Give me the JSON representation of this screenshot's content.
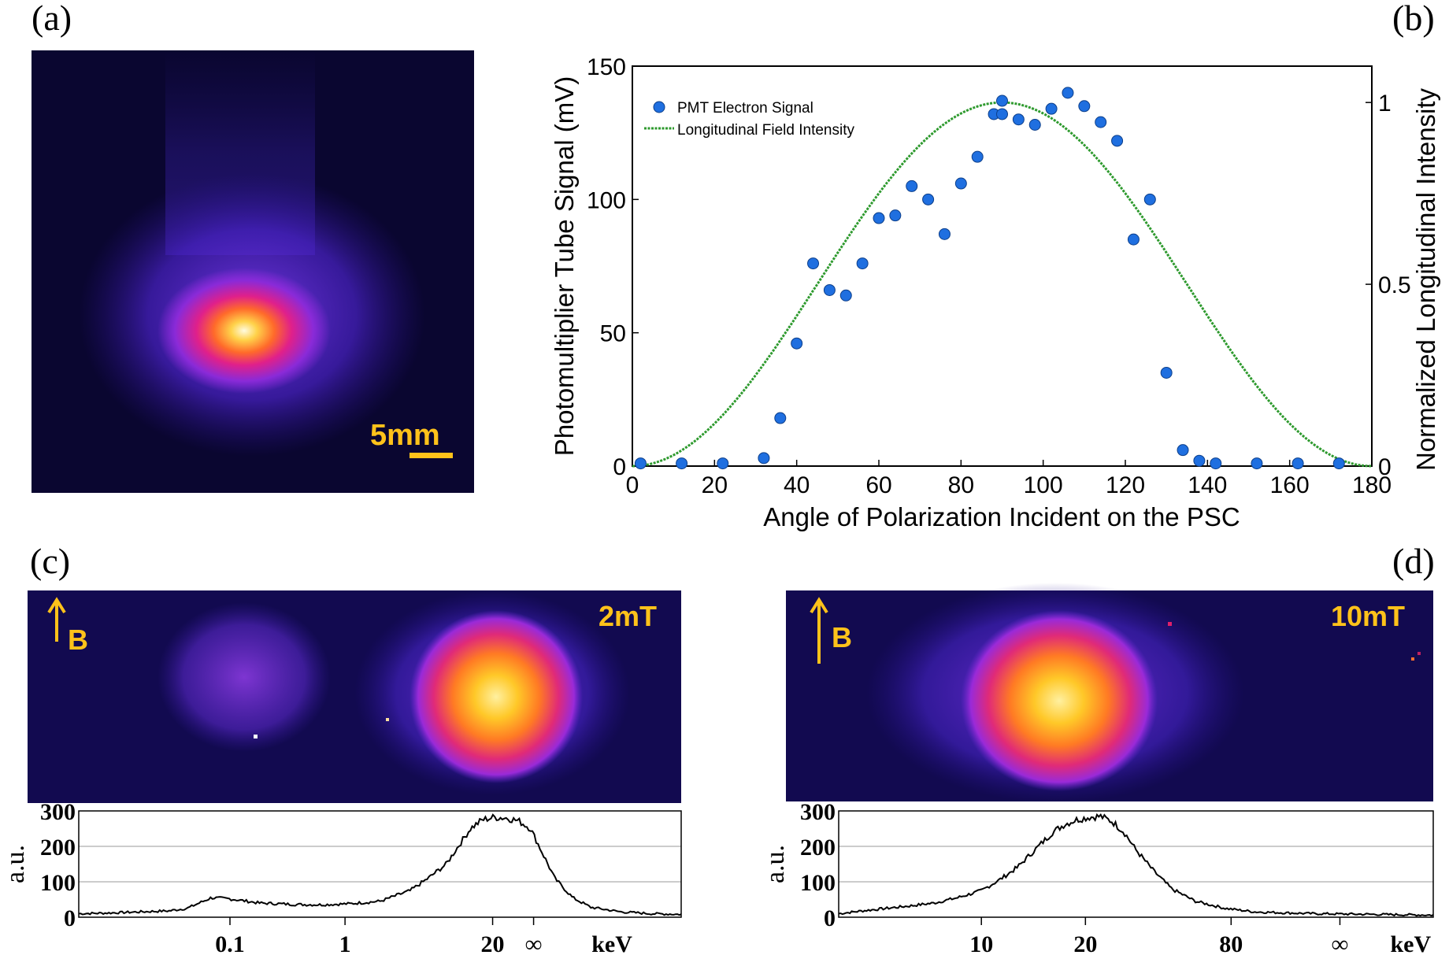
{
  "chart_data": [
    {
      "type": "image",
      "panel_label": "(a)",
      "scale_bar_label": "5mm",
      "colors": {
        "background": "#0a0630",
        "accent": "#ffc21a"
      }
    },
    {
      "type": "scatter",
      "panel_label": "(b)",
      "xlabel": "Angle of Polarization Incident on the PSC",
      "ylabel": "Photomultiplier Tube Signal (mV)",
      "y2label": "Normalized Longitudinal Intensity",
      "xlim": [
        0,
        180
      ],
      "ylim": [
        0,
        150
      ],
      "y2lim": [
        0,
        1.1
      ],
      "xticks": [
        "0",
        "20",
        "40",
        "60",
        "80",
        "100",
        "120",
        "140",
        "160",
        "180"
      ],
      "yticks": [
        "0",
        "50",
        "100",
        "150"
      ],
      "y2ticks": [
        "0",
        "0.5",
        "1"
      ],
      "legend_position": "top-left",
      "series": [
        {
          "name": "PMT Electron Signal",
          "kind": "scatter",
          "color": "#1f6fe0",
          "x": [
            2,
            12,
            22,
            32,
            36,
            40,
            44,
            48,
            52,
            56,
            60,
            64,
            68,
            72,
            76,
            80,
            84,
            88,
            90,
            90,
            94,
            98,
            102,
            106,
            110,
            114,
            118,
            122,
            126,
            130,
            134,
            138,
            142,
            152,
            162,
            172
          ],
          "y": [
            1,
            1,
            1,
            3,
            18,
            46,
            76,
            66,
            64,
            76,
            93,
            94,
            105,
            100,
            87,
            106,
            116,
            132,
            132,
            137,
            130,
            128,
            134,
            140,
            135,
            129,
            122,
            85,
            100,
            35,
            6,
            2,
            1,
            1,
            1,
            1
          ]
        },
        {
          "name": "Longitudinal Field Intensity",
          "kind": "line",
          "color": "#2e9a2e",
          "function": "sin^2(angle)",
          "x": [
            0,
            10,
            20,
            30,
            40,
            50,
            60,
            70,
            80,
            90,
            100,
            110,
            120,
            130,
            140,
            150,
            160,
            170,
            180
          ],
          "y": [
            0,
            0.03,
            0.117,
            0.25,
            0.413,
            0.587,
            0.75,
            0.883,
            0.97,
            1,
            0.97,
            0.883,
            0.75,
            0.587,
            0.413,
            0.25,
            0.117,
            0.03,
            0
          ]
        }
      ]
    },
    {
      "type": "line",
      "panel_label": "(c)",
      "field_label": "2mT",
      "b_label": "B",
      "ylabel": "a.u.",
      "yticks": [
        "0",
        "100",
        "200",
        "300"
      ],
      "ylim": [
        0,
        300
      ],
      "xtick_labels": [
        {
          "label": "0.1",
          "at": 0.251
        },
        {
          "label": "1",
          "at": 0.442
        },
        {
          "label": "20",
          "at": 0.687
        },
        {
          "label": "∞",
          "at": 0.755
        },
        {
          "label": "keV",
          "at": 0.885
        }
      ],
      "profile": {
        "x": [
          0,
          0.05,
          0.1,
          0.15,
          0.18,
          0.2,
          0.22,
          0.25,
          0.28,
          0.3,
          0.33,
          0.36,
          0.4,
          0.45,
          0.5,
          0.55,
          0.58,
          0.61,
          0.63,
          0.65,
          0.67,
          0.69,
          0.71,
          0.73,
          0.75,
          0.77,
          0.79,
          0.82,
          0.85,
          0.9,
          0.95,
          1.0
        ],
        "y": [
          10,
          12,
          15,
          18,
          25,
          40,
          55,
          52,
          45,
          40,
          38,
          36,
          35,
          38,
          45,
          75,
          110,
          150,
          200,
          250,
          275,
          282,
          280,
          272,
          250,
          180,
          110,
          55,
          28,
          15,
          10,
          8
        ]
      }
    },
    {
      "type": "line",
      "panel_label": "(d)",
      "field_label": "10mT",
      "b_label": "B",
      "ylabel": "a.u.",
      "yticks": [
        "0",
        "100",
        "200",
        "300"
      ],
      "ylim": [
        0,
        300
      ],
      "xtick_labels": [
        {
          "label": "10",
          "at": 0.24
        },
        {
          "label": "20",
          "at": 0.415
        },
        {
          "label": "80",
          "at": 0.66
        },
        {
          "label": "∞",
          "at": 0.843
        },
        {
          "label": "keV",
          "at": 0.962
        }
      ],
      "profile": {
        "x": [
          0,
          0.04,
          0.08,
          0.12,
          0.16,
          0.2,
          0.24,
          0.27,
          0.3,
          0.33,
          0.36,
          0.38,
          0.4,
          0.42,
          0.44,
          0.46,
          0.48,
          0.5,
          0.53,
          0.56,
          0.6,
          0.65,
          0.7,
          0.8,
          0.9,
          1.0
        ],
        "y": [
          10,
          18,
          25,
          32,
          40,
          55,
          75,
          105,
          140,
          190,
          240,
          262,
          275,
          282,
          285,
          270,
          240,
          190,
          130,
          80,
          45,
          25,
          15,
          10,
          8,
          6
        ]
      }
    }
  ]
}
